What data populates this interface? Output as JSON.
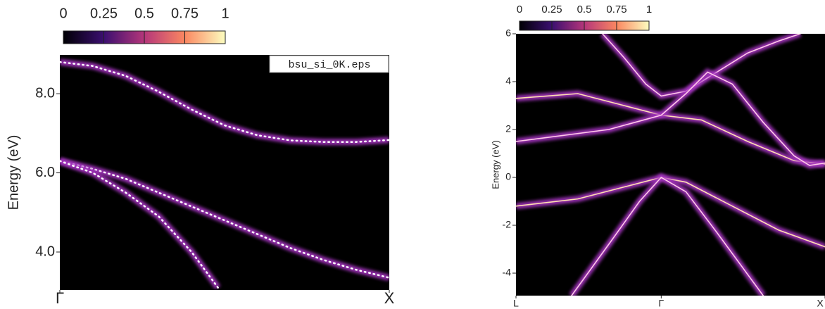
{
  "chart_data": [
    {
      "type": "line",
      "annotation": "bsu_si_0K.eps",
      "ylabel": "Energy (eV)",
      "xlim": [
        0,
        1
      ],
      "xticks": [
        {
          "value": 0,
          "label": "Γ"
        },
        {
          "value": 1,
          "label": "X"
        }
      ],
      "ylim": [
        3.04,
        8.98
      ],
      "yticks": [
        {
          "value": 4,
          "label": "4.0"
        },
        {
          "value": 6,
          "label": "6.0"
        },
        {
          "value": 8,
          "label": "8.0"
        }
      ],
      "colorbar_ticks": [
        0,
        0.25,
        0.5,
        0.75,
        1
      ],
      "background": "#000000",
      "glow": "#a535c0",
      "line_style": "dotted",
      "series": [
        {
          "color": "#ffffff",
          "x": [
            0,
            0.1,
            0.2,
            0.3,
            0.4,
            0.5,
            0.6,
            0.7,
            0.8,
            0.9,
            1
          ],
          "values": [
            8.8,
            8.7,
            8.45,
            8.05,
            7.6,
            7.2,
            6.95,
            6.82,
            6.78,
            6.78,
            6.83
          ]
        },
        {
          "color": "#ffffff",
          "x": [
            0,
            0.1,
            0.2,
            0.3,
            0.4,
            0.5,
            0.6,
            0.7,
            0.8,
            0.9,
            1
          ],
          "values": [
            6.3,
            6.1,
            5.85,
            5.5,
            5.15,
            4.8,
            4.45,
            4.1,
            3.8,
            3.55,
            3.35
          ]
        },
        {
          "color": "#ffffff",
          "x": [
            0,
            0.1,
            0.2,
            0.3,
            0.4,
            0.48
          ],
          "values": [
            6.3,
            6.0,
            5.5,
            4.9,
            4.0,
            3.1
          ]
        }
      ]
    },
    {
      "type": "line",
      "ylabel": "Energy (eV)",
      "xlim": [
        0,
        1
      ],
      "xticks": [
        {
          "value": 0,
          "label": "L"
        },
        {
          "value": 0.47,
          "label": "Γ"
        },
        {
          "value": 1,
          "label": "X"
        }
      ],
      "ylim": [
        -4.94,
        6
      ],
      "yticks": [
        -4,
        -2,
        0,
        2,
        4,
        6
      ],
      "colorbar_ticks": [
        0,
        0.25,
        0.5,
        0.75,
        1
      ],
      "background": "#000000",
      "glow": "#a535c0",
      "line_style": "solid",
      "series": [
        {
          "color": "#ffc8e8",
          "x": [
            0.28,
            0.35,
            0.42,
            0.47,
            0.55,
            0.65,
            0.75,
            0.85,
            0.92
          ],
          "values": [
            6,
            5.0,
            3.9,
            3.4,
            3.6,
            4.4,
            5.2,
            5.7,
            6
          ]
        },
        {
          "color": "#ffe0b0",
          "x": [
            0,
            0.1,
            0.2,
            0.35,
            0.47,
            0.6,
            0.75,
            0.9,
            1
          ],
          "values": [
            3.3,
            3.4,
            3.5,
            3.0,
            2.6,
            2.4,
            1.5,
            0.7,
            0.55
          ]
        },
        {
          "color": "#ffc8e8",
          "x": [
            0,
            0.3,
            0.47,
            0.55,
            0.62,
            0.7,
            0.8,
            0.9,
            0.95,
            1
          ],
          "values": [
            1.5,
            2.0,
            2.6,
            3.5,
            4.4,
            3.9,
            2.3,
            0.9,
            0.5,
            0.6
          ]
        },
        {
          "color": "#ffe0b0",
          "x": [
            0,
            0.2,
            0.35,
            0.47,
            0.55,
            0.7,
            0.85,
            1
          ],
          "values": [
            -1.2,
            -0.9,
            -0.4,
            0,
            -0.2,
            -1.2,
            -2.2,
            -2.9
          ]
        },
        {
          "color": "#ffc8e8",
          "x": [
            0.18,
            0.3,
            0.4,
            0.47,
            0.55,
            0.65,
            0.8
          ],
          "values": [
            -4.94,
            -2.8,
            -1.0,
            0,
            -0.6,
            -2.3,
            -4.94
          ]
        }
      ]
    }
  ]
}
